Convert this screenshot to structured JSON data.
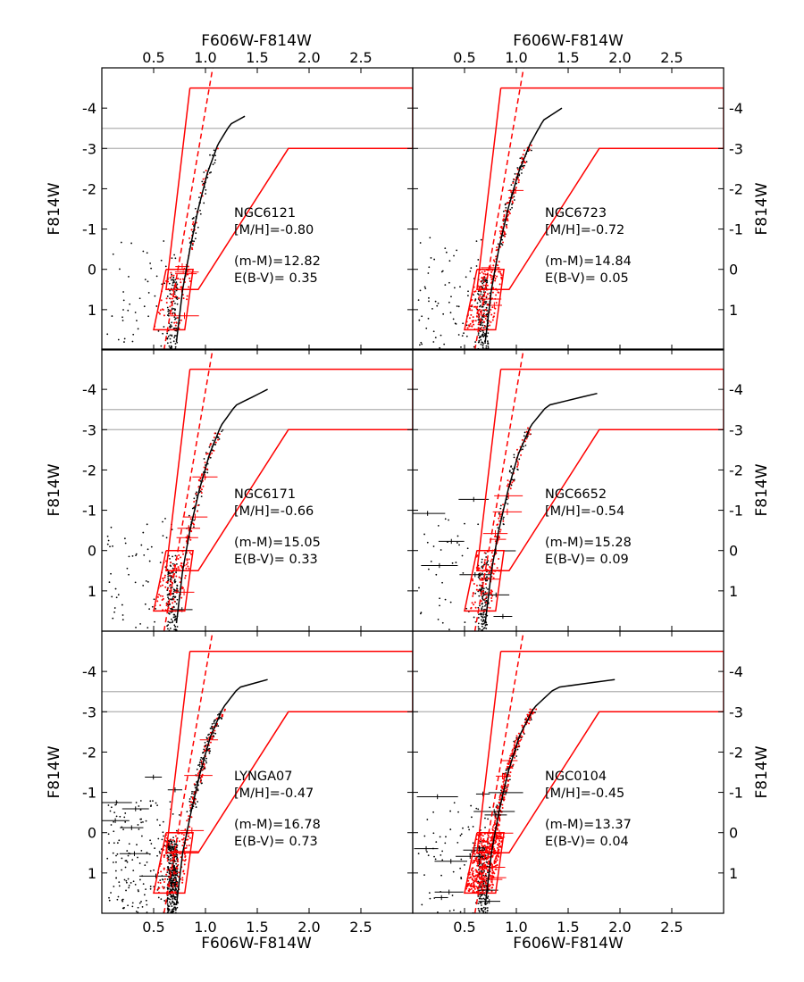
{
  "figure": {
    "top_xlabel": "F606W-F814W",
    "bottom_xlabel": "F606W-F814W",
    "ylabel": "F814W"
  },
  "chart_data": [
    {
      "type": "scatter",
      "panel": "top-left",
      "cluster": "NGC6121",
      "metallicity_label": "[M/H]=-0.80",
      "distance_modulus_label": "(m-M)=12.82",
      "reddening_label": "E(B-V)= 0.35",
      "xlim": [
        0.0,
        3.0
      ],
      "ylim": [
        2.0,
        -5.0
      ],
      "x_ticks": [
        "0.5",
        "1.0",
        "1.5",
        "2.0",
        "2.5"
      ],
      "y_ticks": [
        "-4",
        "-3",
        "-2",
        "-1",
        "0",
        "1"
      ],
      "gray_lines_y": [
        -3.5,
        -3.0
      ],
      "fiducial_track": {
        "x": [
          0.72,
          0.78,
          0.85,
          0.93,
          1.02,
          1.12,
          1.24,
          1.38
        ],
        "y": [
          1.8,
          0.5,
          -0.5,
          -1.5,
          -2.4,
          -3.1,
          -3.6,
          -3.8
        ]
      },
      "red_box_upper": {
        "x": [
          0.85,
          0.62,
          0.93,
          1.8,
          3.0,
          3.0,
          0.85
        ],
        "y": [
          -4.5,
          0.5,
          0.5,
          -3.0,
          -3.0,
          -4.5,
          -4.5
        ]
      },
      "red_box_lower": {
        "x": [
          0.62,
          0.88,
          0.8,
          0.5,
          0.62
        ],
        "y": [
          0.0,
          0.0,
          1.5,
          1.5,
          0.0
        ]
      },
      "red_dashed_line": {
        "x": [
          0.6,
          1.07
        ],
        "y": [
          2.0,
          -5.0
        ]
      },
      "star_counts": {
        "black": 220,
        "red": 90
      },
      "errorbar_counts": {
        "black": 0,
        "red": 5
      }
    },
    {
      "type": "scatter",
      "panel": "top-right",
      "cluster": "NGC6723",
      "metallicity_label": "[M/H]=-0.72",
      "distance_modulus_label": "(m-M)=14.84",
      "reddening_label": "E(B-V)= 0.05",
      "xlim": [
        0.0,
        3.0
      ],
      "ylim": [
        2.0,
        -5.0
      ],
      "x_ticks": [
        "0.5",
        "1.0",
        "1.5",
        "2.0",
        "2.5"
      ],
      "y_ticks": [
        "-4",
        "-3",
        "-2",
        "-1",
        "0",
        "1"
      ],
      "gray_lines_y": [
        -3.5,
        -3.0
      ],
      "fiducial_track": {
        "x": [
          0.7,
          0.76,
          0.83,
          0.92,
          1.02,
          1.13,
          1.26,
          1.44
        ],
        "y": [
          1.8,
          0.5,
          -0.5,
          -1.5,
          -2.4,
          -3.1,
          -3.7,
          -4.0
        ]
      },
      "red_box_upper": {
        "x": [
          0.85,
          0.62,
          0.93,
          1.8,
          3.0,
          3.0,
          0.85
        ],
        "y": [
          -4.5,
          0.5,
          0.5,
          -3.0,
          -3.0,
          -4.5,
          -4.5
        ]
      },
      "red_box_lower": {
        "x": [
          0.62,
          0.88,
          0.8,
          0.5,
          0.62
        ],
        "y": [
          0.0,
          0.0,
          1.5,
          1.5,
          0.0
        ]
      },
      "red_dashed_line": {
        "x": [
          0.6,
          1.07
        ],
        "y": [
          2.0,
          -5.0
        ]
      },
      "star_counts": {
        "black": 320,
        "red": 260
      },
      "errorbar_counts": {
        "black": 0,
        "red": 4
      }
    },
    {
      "type": "scatter",
      "panel": "middle-left",
      "cluster": "NGC6171",
      "metallicity_label": "[M/H]=-0.66",
      "distance_modulus_label": "(m-M)=15.05",
      "reddening_label": "E(B-V)= 0.33",
      "xlim": [
        0.0,
        3.0
      ],
      "ylim": [
        2.0,
        -5.0
      ],
      "x_ticks": [
        "0.5",
        "1.0",
        "1.5",
        "2.0",
        "2.5"
      ],
      "y_ticks": [
        "-4",
        "-3",
        "-2",
        "-1",
        "0",
        "1"
      ],
      "gray_lines_y": [
        -3.5,
        -3.0
      ],
      "fiducial_track": {
        "x": [
          0.72,
          0.78,
          0.85,
          0.94,
          1.04,
          1.15,
          1.29,
          1.6
        ],
        "y": [
          1.8,
          0.5,
          -0.5,
          -1.5,
          -2.4,
          -3.1,
          -3.6,
          -4.0
        ]
      },
      "red_box_upper": {
        "x": [
          0.85,
          0.62,
          0.93,
          1.8,
          3.0,
          3.0,
          0.85
        ],
        "y": [
          -4.5,
          0.5,
          0.5,
          -3.0,
          -3.0,
          -4.5,
          -4.5
        ]
      },
      "red_box_lower": {
        "x": [
          0.62,
          0.88,
          0.8,
          0.5,
          0.62
        ],
        "y": [
          0.0,
          0.0,
          1.5,
          1.5,
          0.0
        ]
      },
      "red_dashed_line": {
        "x": [
          0.6,
          1.07
        ],
        "y": [
          2.0,
          -5.0
        ]
      },
      "star_counts": {
        "black": 260,
        "red": 160
      },
      "errorbar_counts": {
        "black": 1,
        "red": 5
      }
    },
    {
      "type": "scatter",
      "panel": "middle-right",
      "cluster": "NGC6652",
      "metallicity_label": "[M/H]=-0.54",
      "distance_modulus_label": "(m-M)=15.28",
      "reddening_label": "E(B-V)= 0.09",
      "xlim": [
        0.0,
        3.0
      ],
      "ylim": [
        2.0,
        -5.0
      ],
      "x_ticks": [
        "0.5",
        "1.0",
        "1.5",
        "2.0",
        "2.5"
      ],
      "y_ticks": [
        "-4",
        "-3",
        "-2",
        "-1",
        "0",
        "1"
      ],
      "gray_lines_y": [
        -3.5,
        -3.0
      ],
      "fiducial_track": {
        "x": [
          0.7,
          0.76,
          0.83,
          0.92,
          1.02,
          1.14,
          1.3,
          1.78
        ],
        "y": [
          1.8,
          0.5,
          -0.5,
          -1.5,
          -2.4,
          -3.1,
          -3.6,
          -3.9
        ]
      },
      "red_box_upper": {
        "x": [
          0.85,
          0.62,
          0.93,
          1.8,
          3.0,
          3.0,
          0.85
        ],
        "y": [
          -4.5,
          0.5,
          0.5,
          -3.0,
          -3.0,
          -4.5,
          -4.5
        ]
      },
      "red_box_lower": {
        "x": [
          0.62,
          0.88,
          0.8,
          0.5,
          0.62
        ],
        "y": [
          0.0,
          0.0,
          1.5,
          1.5,
          0.0
        ]
      },
      "red_dashed_line": {
        "x": [
          0.6,
          1.07
        ],
        "y": [
          2.0,
          -5.0
        ]
      },
      "star_counts": {
        "black": 230,
        "red": 150
      },
      "errorbar_counts": {
        "black": 8,
        "red": 6
      }
    },
    {
      "type": "scatter",
      "panel": "bottom-left",
      "cluster": "LYNGA07",
      "metallicity_label": "[M/H]=-0.47",
      "distance_modulus_label": "(m-M)=16.78",
      "reddening_label": "E(B-V)= 0.73",
      "xlim": [
        0.0,
        3.0
      ],
      "ylim": [
        2.0,
        -5.0
      ],
      "x_ticks": [
        "0.5",
        "1.0",
        "1.5",
        "2.0",
        "2.5"
      ],
      "y_ticks": [
        "-4",
        "-3",
        "-2",
        "-1",
        "0",
        "1"
      ],
      "gray_lines_y": [
        -3.5,
        -3.0
      ],
      "fiducial_track": {
        "x": [
          0.72,
          0.78,
          0.86,
          0.95,
          1.05,
          1.17,
          1.32,
          1.6
        ],
        "y": [
          1.8,
          0.5,
          -0.5,
          -1.5,
          -2.4,
          -3.1,
          -3.6,
          -3.8
        ]
      },
      "red_box_upper": {
        "x": [
          0.85,
          0.62,
          0.93,
          1.8,
          3.0,
          3.0,
          0.85
        ],
        "y": [
          -4.5,
          0.5,
          0.5,
          -3.0,
          -3.0,
          -4.5,
          -4.5
        ]
      },
      "red_box_lower": {
        "x": [
          0.62,
          0.88,
          0.8,
          0.5,
          0.62
        ],
        "y": [
          0.0,
          0.0,
          1.5,
          1.5,
          0.0
        ]
      },
      "red_dashed_line": {
        "x": [
          0.6,
          1.07
        ],
        "y": [
          2.0,
          -5.0
        ]
      },
      "star_counts": {
        "black": 700,
        "red": 200
      },
      "errorbar_counts": {
        "black": 8,
        "red": 4
      }
    },
    {
      "type": "scatter",
      "panel": "bottom-right",
      "cluster": "NGC0104",
      "metallicity_label": "[M/H]=-0.45",
      "distance_modulus_label": "(m-M)=13.37",
      "reddening_label": "E(B-V)= 0.04",
      "xlim": [
        0.0,
        3.0
      ],
      "ylim": [
        2.0,
        -5.0
      ],
      "x_ticks": [
        "0.5",
        "1.0",
        "1.5",
        "2.0",
        "2.5"
      ],
      "y_ticks": [
        "-4",
        "-3",
        "-2",
        "-1",
        "0",
        "1"
      ],
      "gray_lines_y": [
        -3.5,
        -3.0
      ],
      "fiducial_track": {
        "x": [
          0.7,
          0.76,
          0.83,
          0.92,
          1.03,
          1.17,
          1.38,
          1.95
        ],
        "y": [
          1.8,
          0.5,
          -0.5,
          -1.5,
          -2.4,
          -3.1,
          -3.6,
          -3.8
        ]
      },
      "red_box_upper": {
        "x": [
          0.85,
          0.62,
          0.93,
          1.8,
          3.0,
          3.0,
          0.85
        ],
        "y": [
          -4.5,
          0.5,
          0.5,
          -3.0,
          -3.0,
          -4.5,
          -4.5
        ]
      },
      "red_box_lower": {
        "x": [
          0.62,
          0.88,
          0.8,
          0.5,
          0.62
        ],
        "y": [
          0.0,
          0.0,
          1.5,
          1.5,
          0.0
        ]
      },
      "red_dashed_line": {
        "x": [
          0.6,
          1.07
        ],
        "y": [
          2.0,
          -5.0
        ]
      },
      "star_counts": {
        "black": 320,
        "red": 650
      },
      "errorbar_counts": {
        "black": 14,
        "red": 8
      }
    }
  ],
  "colors": {
    "stars": "#000000",
    "selected_stars": "#ff0000",
    "box_outline": "#ff0000",
    "fiducial": "#000000",
    "reference_lines": "#b0b0b0",
    "axes": "#000000"
  }
}
